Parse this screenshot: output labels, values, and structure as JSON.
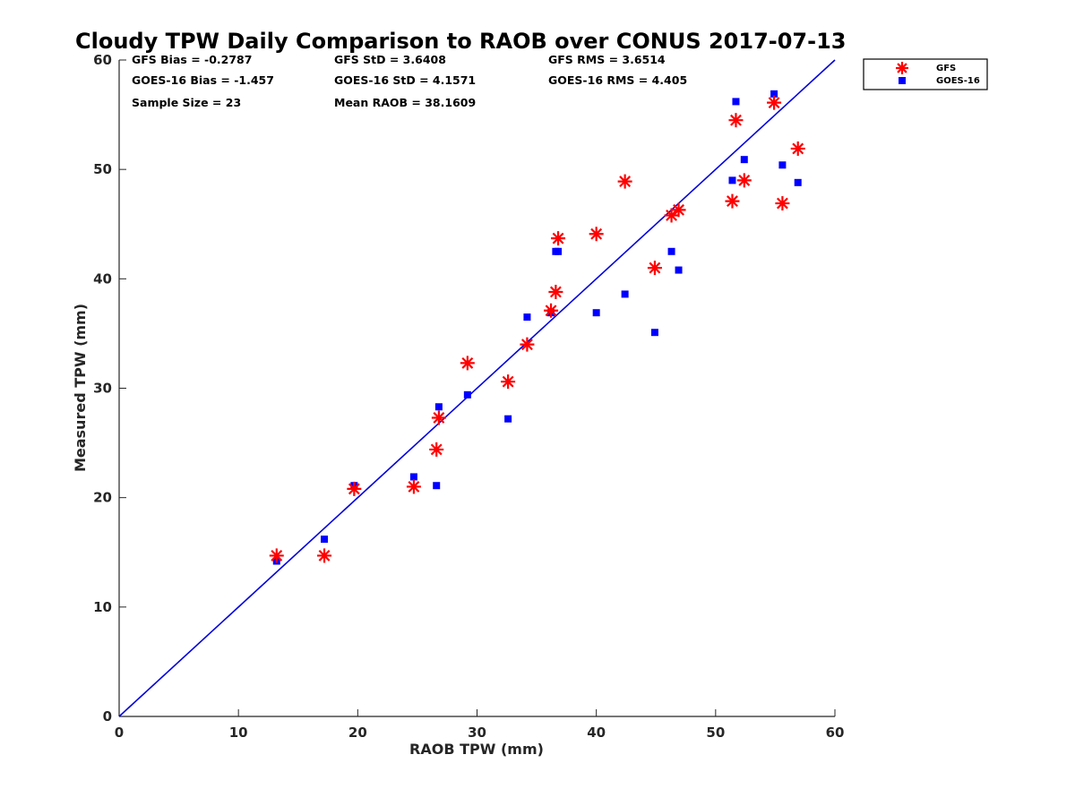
{
  "chart_data": {
    "type": "scatter",
    "title": "Cloudy TPW Daily Comparison to RAOB over CONUS 2017-07-13",
    "xlabel": "RAOB TPW (mm)",
    "ylabel": "Measured TPW (mm)",
    "xlim": [
      0,
      60
    ],
    "ylim": [
      0,
      60
    ],
    "xticks": [
      0,
      10,
      20,
      30,
      40,
      50,
      60
    ],
    "yticks": [
      0,
      10,
      20,
      30,
      40,
      50,
      60
    ],
    "grid": false,
    "legend_position": "top-right outside",
    "reference_line": {
      "x": [
        0,
        60
      ],
      "y": [
        0,
        60
      ],
      "color": "#0000dd"
    },
    "stats": [
      "GFS Bias = -0.2787",
      "GFS StD = 3.6408",
      "GFS RMS = 3.6514",
      "GOES-16 Bias = -1.457",
      "GOES-16 StD = 4.1571",
      "GOES-16 RMS = 4.405",
      "Sample Size = 23",
      "Mean RAOB = 38.1609"
    ],
    "series": [
      {
        "name": "GFS",
        "marker": "asterisk",
        "color": "#ff0000",
        "points": [
          [
            13.2,
            14.7
          ],
          [
            17.2,
            14.7
          ],
          [
            19.7,
            20.8
          ],
          [
            24.7,
            21.0
          ],
          [
            26.6,
            24.4
          ],
          [
            26.8,
            27.3
          ],
          [
            29.2,
            32.3
          ],
          [
            32.6,
            30.6
          ],
          [
            34.2,
            34.0
          ],
          [
            36.2,
            37.1
          ],
          [
            36.6,
            38.8
          ],
          [
            36.8,
            43.7
          ],
          [
            40.0,
            44.1
          ],
          [
            42.4,
            48.9
          ],
          [
            44.9,
            41.0
          ],
          [
            46.3,
            45.8
          ],
          [
            46.9,
            46.3
          ],
          [
            51.4,
            47.1
          ],
          [
            51.7,
            54.5
          ],
          [
            52.4,
            49.0
          ],
          [
            54.9,
            56.1
          ],
          [
            55.6,
            46.9
          ],
          [
            56.9,
            51.9
          ]
        ]
      },
      {
        "name": "GOES-16",
        "marker": "square",
        "color": "#0000ff",
        "points": [
          [
            13.2,
            14.2
          ],
          [
            17.2,
            16.2
          ],
          [
            19.7,
            21.1
          ],
          [
            24.7,
            21.9
          ],
          [
            26.6,
            21.1
          ],
          [
            26.8,
            28.3
          ],
          [
            29.2,
            29.4
          ],
          [
            32.6,
            27.2
          ],
          [
            34.2,
            36.5
          ],
          [
            36.2,
            36.9
          ],
          [
            36.6,
            42.5
          ],
          [
            36.8,
            42.5
          ],
          [
            40.0,
            36.9
          ],
          [
            42.4,
            38.6
          ],
          [
            44.9,
            35.1
          ],
          [
            46.3,
            42.5
          ],
          [
            46.9,
            40.8
          ],
          [
            51.4,
            49.0
          ],
          [
            51.7,
            56.2
          ],
          [
            52.4,
            50.9
          ],
          [
            54.9,
            56.9
          ],
          [
            55.6,
            50.4
          ],
          [
            56.9,
            48.8
          ]
        ]
      }
    ]
  }
}
